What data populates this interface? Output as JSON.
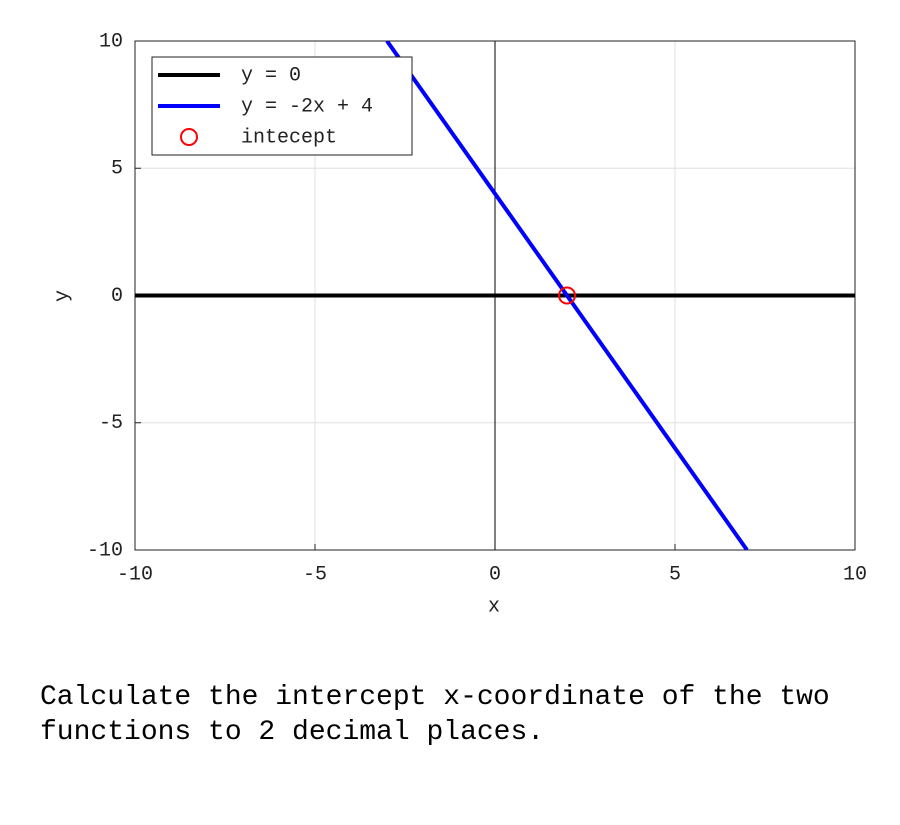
{
  "chart_data": {
    "type": "line",
    "xlabel": "x",
    "ylabel": "y",
    "xlim": [
      -10,
      10
    ],
    "ylim": [
      -10,
      10
    ],
    "xticks": [
      -10,
      -5,
      0,
      5,
      10
    ],
    "yticks": [
      -10,
      -5,
      0,
      5,
      10
    ],
    "grid": true,
    "legend": "upper left",
    "series": [
      {
        "name": "y = 0",
        "color": "#000000",
        "x": [
          -10,
          10
        ],
        "values": [
          0,
          0
        ]
      },
      {
        "name": "y = -2x + 4",
        "color": "#0000ff",
        "x": [
          -3,
          7
        ],
        "values": [
          10,
          -10
        ]
      },
      {
        "name": "intecept",
        "color": "#ff0000",
        "marker": "circle",
        "x": [
          2
        ],
        "values": [
          0
        ]
      }
    ]
  },
  "question": "Calculate the intercept x-coordinate of the two functions to 2 decimal places."
}
